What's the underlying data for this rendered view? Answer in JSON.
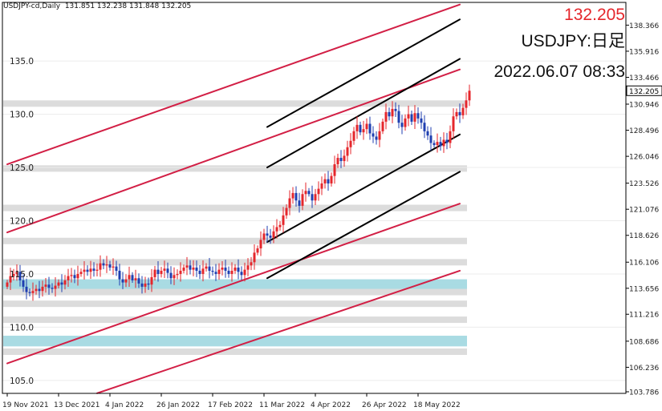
{
  "header": {
    "symbol_tf": "USDJPY-cd,Daily",
    "ohlc": "131.851 132.238 131.848 132.205"
  },
  "overlay": {
    "price": "132.205",
    "symbol": "USDJPY:日足",
    "datetime": "2022.06.07 08:33"
  },
  "colors": {
    "bull": "#e5262b",
    "bear": "#1f3fb0",
    "channel_outer": "#d21f45",
    "channel_inner": "#000000",
    "zone_grey": "#dcdcdc",
    "zone_blue": "#a9dbe3"
  },
  "chart_data": {
    "type": "candlestick",
    "title": "",
    "ylim": [
      103.786,
      140.5
    ],
    "left_scale_ticks": [
      105.0,
      110.0,
      115.0,
      120.0,
      125.0,
      130.0,
      135.0
    ],
    "right_scale_ticks": [
      106.236,
      108.686,
      111.216,
      113.656,
      116.106,
      118.626,
      121.076,
      123.526,
      126.046,
      128.496,
      130.946,
      133.466,
      135.916,
      138.366
    ],
    "right_scale_bottom": "103.786",
    "current_price": 132.205,
    "x_labels": [
      {
        "i": 0,
        "label": "19 Nov 2021"
      },
      {
        "i": 16,
        "label": "13 Dec 2021"
      },
      {
        "i": 32,
        "label": "4 Jan 2022"
      },
      {
        "i": 48,
        "label": "26 Jan 2022"
      },
      {
        "i": 64,
        "label": "17 Feb 2022"
      },
      {
        "i": 80,
        "label": "11 Mar 2022"
      },
      {
        "i": 96,
        "label": "4 Apr 2022"
      },
      {
        "i": 112,
        "label": "26 Apr 2022"
      },
      {
        "i": 128,
        "label": "18 May 2022"
      }
    ],
    "n_bars": 141,
    "closes": [
      114.2,
      114.8,
      115.0,
      115.2,
      114.4,
      113.8,
      113.3,
      113.2,
      113.4,
      113.6,
      113.4,
      113.8,
      114.0,
      113.7,
      113.6,
      113.9,
      114.2,
      114.0,
      114.4,
      114.8,
      114.9,
      114.6,
      115.0,
      115.2,
      115.4,
      115.2,
      115.5,
      115.3,
      115.4,
      116.0,
      115.8,
      115.9,
      115.6,
      115.7,
      115.3,
      114.5,
      114.2,
      114.5,
      114.9,
      114.4,
      114.6,
      114.1,
      113.8,
      114.1,
      114.0,
      114.7,
      115.4,
      115.0,
      115.3,
      115.5,
      115.1,
      114.6,
      114.9,
      115.0,
      115.3,
      115.6,
      115.8,
      115.4,
      115.6,
      115.3,
      115.0,
      115.5,
      115.7,
      115.3,
      115.2,
      115.0,
      115.4,
      115.6,
      115.3,
      115.0,
      115.3,
      115.6,
      115.2,
      114.9,
      115.4,
      115.8,
      116.1,
      117.0,
      117.4,
      118.2,
      118.8,
      118.6,
      118.4,
      119.0,
      119.4,
      119.6,
      120.5,
      121.2,
      122.1,
      122.6,
      121.9,
      121.4,
      122.5,
      122.8,
      122.5,
      121.9,
      122.5,
      123.0,
      123.5,
      123.9,
      123.5,
      124.2,
      125.3,
      125.9,
      125.6,
      126.1,
      126.9,
      127.5,
      128.4,
      129.0,
      128.3,
      128.6,
      129.1,
      128.2,
      127.9,
      127.6,
      128.4,
      129.3,
      130.2,
      129.8,
      130.5,
      130.3,
      129.2,
      128.8,
      129.6,
      130.0,
      129.3,
      130.1,
      129.6,
      129.2,
      128.4,
      128.0,
      127.3,
      127.1,
      127.4,
      127.0,
      127.6,
      127.3,
      128.4,
      129.8,
      130.2,
      129.9,
      130.6,
      131.3,
      132.205
    ],
    "levels": [
      {
        "price": 131.0,
        "color": "grey"
      },
      {
        "price": 124.9,
        "color": "grey"
      },
      {
        "price": 121.2,
        "color": "grey"
      },
      {
        "price": 118.1,
        "color": "grey"
      },
      {
        "price": 116.1,
        "color": "grey"
      },
      {
        "price": 114.2,
        "color": "blue"
      },
      {
        "price": 113.7,
        "color": "blue"
      },
      {
        "price": 113.3,
        "color": "grey"
      },
      {
        "price": 112.2,
        "color": "grey"
      },
      {
        "price": 110.7,
        "color": "grey"
      },
      {
        "price": 108.9,
        "color": "blue"
      },
      {
        "price": 108.5,
        "color": "blue"
      },
      {
        "price": 107.7,
        "color": "grey"
      }
    ],
    "trendlines": [
      {
        "style": "outer",
        "from": [
          0,
          125.3
        ],
        "to": [
          141,
          140.3
        ]
      },
      {
        "style": "outer",
        "from": [
          0,
          118.9
        ],
        "to": [
          141,
          134.2
        ]
      },
      {
        "style": "outer",
        "from": [
          0,
          106.6
        ],
        "to": [
          141,
          121.6
        ]
      },
      {
        "style": "outer",
        "from": [
          28,
          103.8
        ],
        "to": [
          141,
          115.3
        ]
      },
      {
        "style": "inner",
        "from": [
          81,
          128.8
        ],
        "to": [
          141,
          138.9
        ]
      },
      {
        "style": "inner",
        "from": [
          81,
          125.0
        ],
        "to": [
          141,
          135.2
        ]
      },
      {
        "style": "inner",
        "from": [
          81,
          118.0
        ],
        "to": [
          141,
          128.1
        ]
      },
      {
        "style": "inner",
        "from": [
          81,
          114.6
        ],
        "to": [
          141,
          124.6
        ]
      }
    ]
  }
}
